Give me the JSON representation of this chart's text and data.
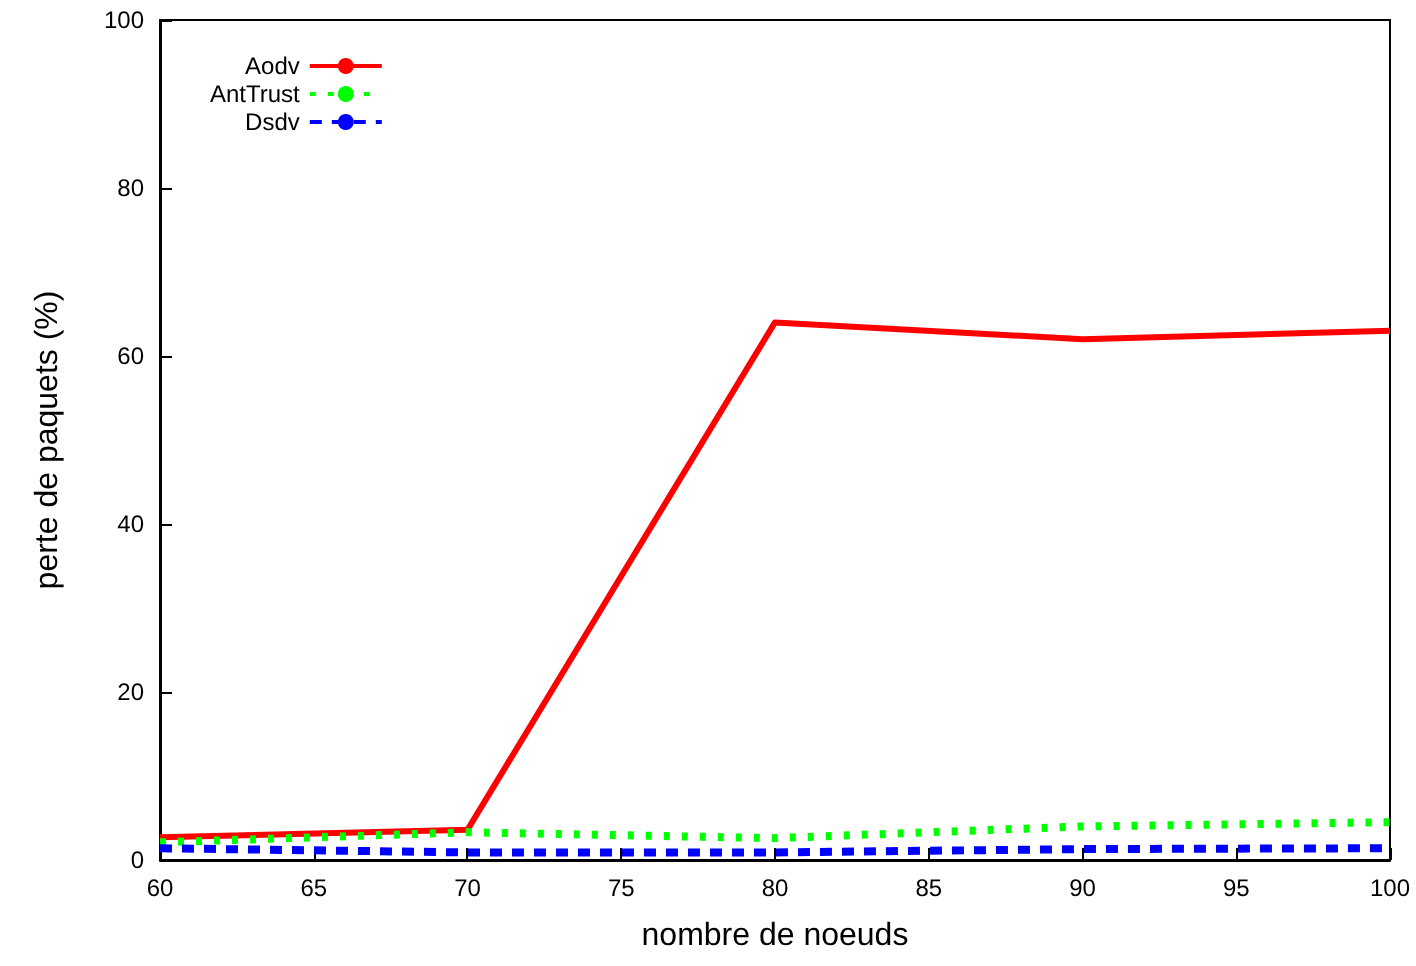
{
  "chart_data": {
    "type": "line",
    "xlabel": "nombre de noeuds",
    "ylabel": "perte de paquets (%)",
    "x": [
      60,
      70,
      80,
      90,
      100
    ],
    "series": [
      {
        "name": "Aodv",
        "color": "#ff0000",
        "line_style": "solid",
        "values": [
          2.7,
          3.6,
          64,
          62,
          63
        ]
      },
      {
        "name": "AntTrust",
        "color": "#00ff00",
        "line_style": "dotted",
        "values": [
          2.1,
          3.3,
          2.6,
          4,
          4.5
        ]
      },
      {
        "name": "Dsdv",
        "color": "#0000ff",
        "line_style": "dashed",
        "values": [
          1.4,
          0.9,
          0.9,
          1.3,
          1.4
        ]
      }
    ],
    "xlim": [
      60,
      100
    ],
    "xticks": [
      60,
      65,
      70,
      75,
      80,
      85,
      90,
      95,
      100
    ],
    "ylim": [
      0,
      100
    ],
    "yticks": [
      0,
      20,
      40,
      60,
      80,
      100
    ],
    "grid": false,
    "legend": "top left",
    "marker": "none"
  }
}
